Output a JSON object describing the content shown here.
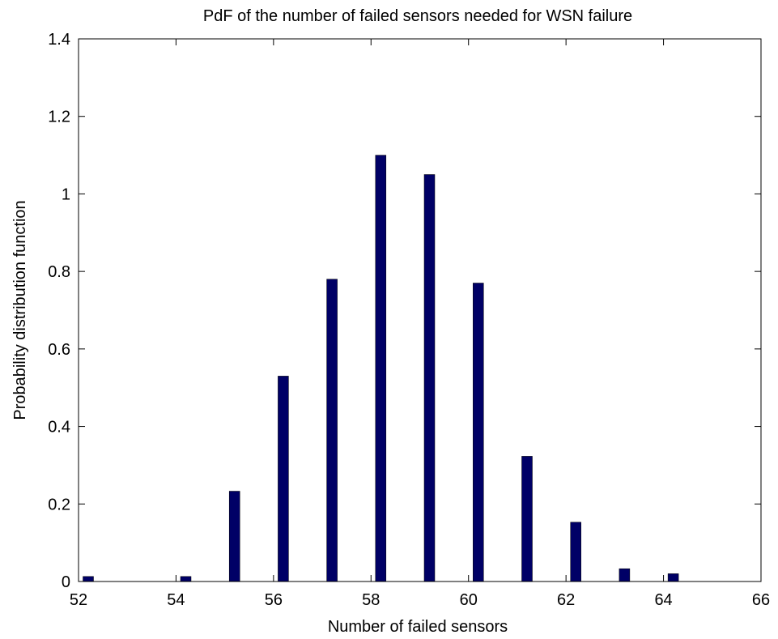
{
  "chart_data": {
    "type": "bar",
    "title": "PdF of the number of failed sensors needed for WSN failure",
    "xlabel": "Number of failed sensors",
    "ylabel": "Probability distribution function",
    "xlim": [
      52,
      66
    ],
    "ylim": [
      0,
      1.4
    ],
    "xticks": [
      "52",
      "54",
      "56",
      "58",
      "60",
      "62",
      "64",
      "66"
    ],
    "yticks": [
      "0",
      "0.2",
      "0.4",
      "0.6",
      "0.8",
      "1",
      "1.2",
      "1.4"
    ],
    "x": [
      52.2,
      54.2,
      55.2,
      56.2,
      57.2,
      58.2,
      59.2,
      60.2,
      61.2,
      62.2,
      63.2,
      64.2
    ],
    "values": [
      0.013,
      0.013,
      0.233,
      0.53,
      0.78,
      1.1,
      1.05,
      0.77,
      0.323,
      0.153,
      0.033,
      0.02
    ],
    "bar_color": "#000066",
    "grid": false
  }
}
